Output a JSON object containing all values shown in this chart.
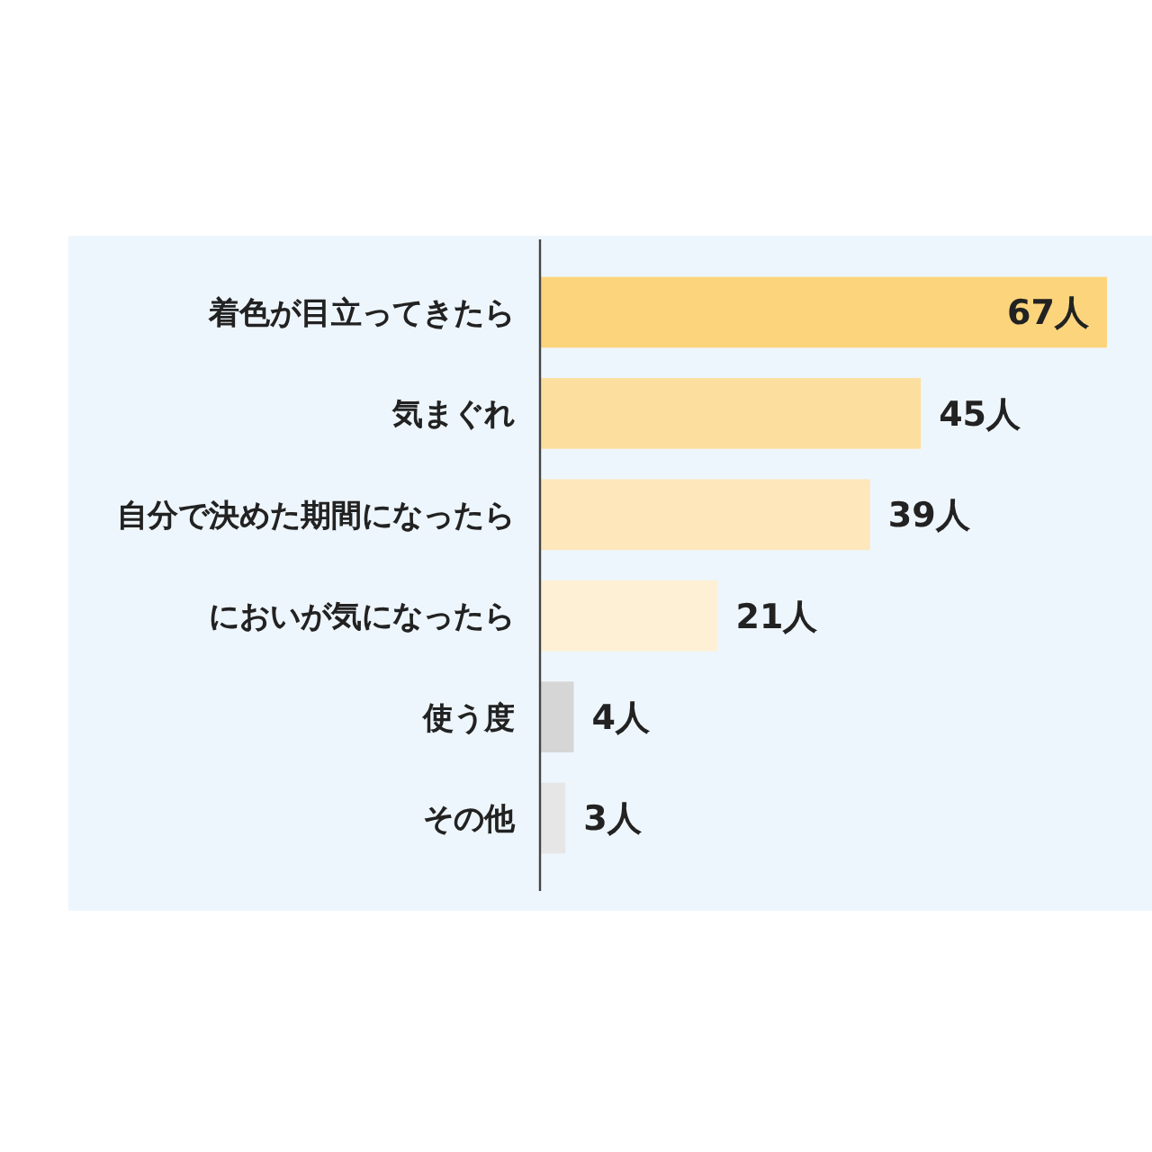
{
  "chart_data": {
    "type": "bar",
    "orientation": "horizontal",
    "categories": [
      "着色が目立ってきたら",
      "気まぐれ",
      "自分で決めた期間になったら",
      "においが気になったら",
      "使う度",
      "その他"
    ],
    "values": [
      67,
      45,
      39,
      21,
      4,
      3
    ],
    "colors": [
      "#fcd47c",
      "#fcdf9f",
      "#fde7bb",
      "#fef0d4",
      "#d6d6d6",
      "#e6e6e6"
    ],
    "value_labels": [
      "67人",
      "45人",
      "39人",
      "21人",
      "4人",
      "3人"
    ]
  }
}
